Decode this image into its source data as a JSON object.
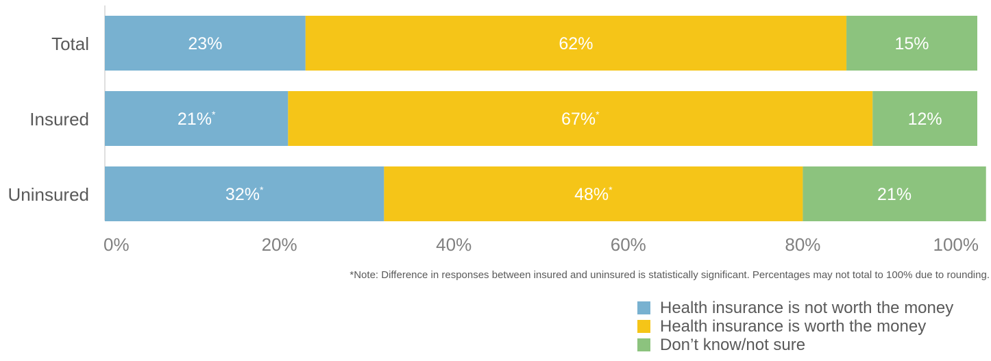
{
  "chart_data": {
    "type": "bar",
    "orientation": "horizontal",
    "stacked": true,
    "categories": [
      "Total",
      "Insured",
      "Uninsured"
    ],
    "series": [
      {
        "name": "Health insurance is not worth the money",
        "color": "#78b1d0",
        "values": [
          23,
          21,
          32
        ],
        "labels": [
          "23%",
          "21%",
          "32%"
        ],
        "significant": [
          false,
          true,
          true
        ]
      },
      {
        "name": "Health insurance is worth the money",
        "color": "#f5c518",
        "values": [
          62,
          67,
          48
        ],
        "labels": [
          "62%",
          "67%",
          "48%"
        ],
        "significant": [
          false,
          true,
          true
        ]
      },
      {
        "name": "Don’t know/not sure",
        "color": "#8cc37e",
        "values": [
          15,
          12,
          21
        ],
        "labels": [
          "15%",
          "12%",
          "21%"
        ],
        "significant": [
          false,
          false,
          false
        ]
      }
    ],
    "xlim": [
      0,
      100
    ],
    "x_ticks": [
      "0%",
      "20%",
      "40%",
      "60%",
      "80%",
      "100%"
    ],
    "significance_marker": "*",
    "legend_position": "bottom-right",
    "grid": false
  },
  "note": "*Note: Difference in responses between insured and uninsured is statistically significant. Percentages may not total to 100% due to rounding."
}
